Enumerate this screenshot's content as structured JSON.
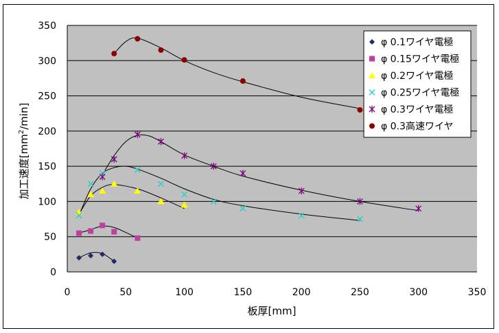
{
  "chart_data": {
    "type": "scatter",
    "xlabel": "板厚[mm]",
    "ylabel_parts": [
      "加工速度[mm",
      "2",
      "/min]"
    ],
    "xlim": [
      0,
      350
    ],
    "ylim": [
      0,
      350
    ],
    "x_ticks": [
      0,
      50,
      100,
      150,
      200,
      250,
      300,
      350
    ],
    "y_ticks": [
      0,
      50,
      100,
      150,
      200,
      250,
      300,
      350
    ],
    "grid": "horizontal",
    "legend_position": "top-right",
    "series": [
      {
        "name": "φ 0.1ワイヤ電極",
        "marker": "diamond",
        "color": "#1f2a6b",
        "points": [
          [
            10,
            20
          ],
          [
            20,
            23
          ],
          [
            30,
            25
          ],
          [
            40,
            15
          ]
        ],
        "curve": [
          [
            10,
            20
          ],
          [
            20,
            27
          ],
          [
            30,
            26
          ],
          [
            40,
            15
          ]
        ]
      },
      {
        "name": "φ 0.15ワイヤ電極",
        "marker": "square",
        "color": "#bf3f9f",
        "points": [
          [
            10,
            55
          ],
          [
            20,
            58
          ],
          [
            30,
            66
          ],
          [
            40,
            57
          ],
          [
            60,
            48
          ]
        ],
        "curve": [
          [
            10,
            55
          ],
          [
            20,
            60
          ],
          [
            30,
            65
          ],
          [
            40,
            63
          ],
          [
            50,
            56
          ],
          [
            60,
            48
          ]
        ]
      },
      {
        "name": "φ 0.2ワイヤ電極",
        "marker": "triangle",
        "color": "#ffff00",
        "points": [
          [
            10,
            85
          ],
          [
            20,
            110
          ],
          [
            30,
            115
          ],
          [
            40,
            125
          ],
          [
            60,
            115
          ],
          [
            80,
            100
          ],
          [
            100,
            95
          ]
        ],
        "curve": [
          [
            10,
            82
          ],
          [
            20,
            108
          ],
          [
            30,
            120
          ],
          [
            40,
            124
          ],
          [
            60,
            118
          ],
          [
            80,
            105
          ],
          [
            100,
            90
          ]
        ]
      },
      {
        "name": "φ 0.25ワイヤ電極",
        "marker": "x",
        "color": "#33cccc",
        "points": [
          [
            10,
            80
          ],
          [
            20,
            125
          ],
          [
            30,
            140
          ],
          [
            40,
            160
          ],
          [
            60,
            145
          ],
          [
            80,
            125
          ],
          [
            100,
            110
          ],
          [
            125,
            100
          ],
          [
            150,
            90
          ],
          [
            200,
            80
          ],
          [
            250,
            75
          ]
        ],
        "curve": [
          [
            10,
            80
          ],
          [
            20,
            118
          ],
          [
            30,
            140
          ],
          [
            40,
            148
          ],
          [
            50,
            150
          ],
          [
            60,
            146
          ],
          [
            80,
            133
          ],
          [
            100,
            118
          ],
          [
            125,
            103
          ],
          [
            150,
            94
          ],
          [
            200,
            82
          ],
          [
            250,
            73
          ]
        ]
      },
      {
        "name": "φ 0.3ワイヤ電極",
        "marker": "star",
        "color": "#800080",
        "points": [
          [
            30,
            135
          ],
          [
            40,
            160
          ],
          [
            60,
            195
          ],
          [
            80,
            185
          ],
          [
            100,
            165
          ],
          [
            125,
            150
          ],
          [
            150,
            140
          ],
          [
            200,
            115
          ],
          [
            250,
            100
          ],
          [
            300,
            90
          ]
        ],
        "curve": [
          [
            30,
            138
          ],
          [
            40,
            165
          ],
          [
            50,
            185
          ],
          [
            60,
            194
          ],
          [
            70,
            193
          ],
          [
            80,
            185
          ],
          [
            100,
            166
          ],
          [
            125,
            150
          ],
          [
            150,
            136
          ],
          [
            200,
            116
          ],
          [
            250,
            100
          ],
          [
            300,
            87
          ]
        ]
      },
      {
        "name": "φ 0.3高速ワイヤ",
        "marker": "circle",
        "color": "#8b0000",
        "points": [
          [
            40,
            310
          ],
          [
            60,
            331
          ],
          [
            80,
            315
          ],
          [
            100,
            301
          ],
          [
            150,
            271
          ],
          [
            250,
            230
          ]
        ],
        "curve": [
          [
            40,
            310
          ],
          [
            50,
            327
          ],
          [
            60,
            332
          ],
          [
            80,
            318
          ],
          [
            100,
            300
          ],
          [
            125,
            283
          ],
          [
            150,
            270
          ],
          [
            200,
            248
          ],
          [
            250,
            232
          ]
        ]
      }
    ]
  }
}
